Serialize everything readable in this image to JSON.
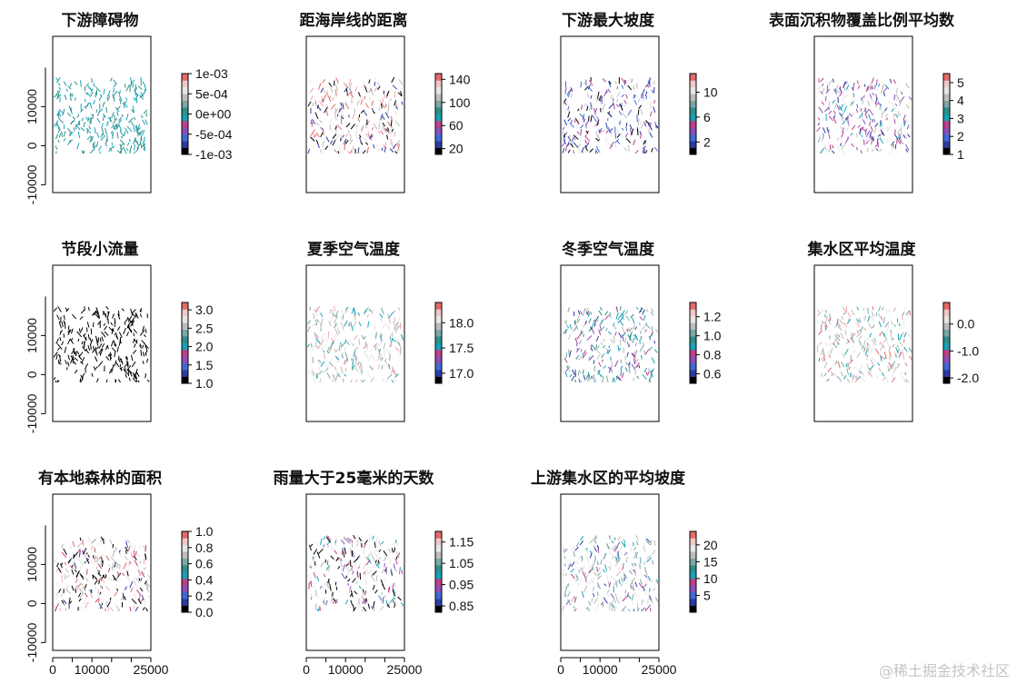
{
  "watermark": "@稀土掘金技术社区",
  "palette": [
    "#000000",
    "#2a3ca0",
    "#3f6bd8",
    "#8c4fb8",
    "#c03f8a",
    "#17a2b8",
    "#2f8f8a",
    "#7ba7a7",
    "#bdbdbd",
    "#e6e6e6",
    "#f0a8a8",
    "#e56a6a"
  ],
  "chart_data": [
    {
      "type": "heatmap",
      "title": "下游障碍物",
      "colorbar": {
        "range": [
          -0.001,
          0.001
        ],
        "ticks": [
          "1e-03",
          "5e-04",
          "0e+00",
          "-5e-04",
          "-1e-03"
        ]
      },
      "yticks": [
        "10000",
        "0",
        "-10000"
      ],
      "xticks": []
    },
    {
      "type": "heatmap",
      "title": "距海岸线的距离",
      "colorbar": {
        "range": [
          10,
          150
        ],
        "ticks": [
          "140",
          "100",
          "60",
          "20"
        ]
      },
      "yticks": [],
      "xticks": []
    },
    {
      "type": "heatmap",
      "title": "下游最大坡度",
      "colorbar": {
        "range": [
          0,
          13
        ],
        "ticks": [
          "10",
          "6",
          "2"
        ]
      },
      "yticks": [],
      "xticks": []
    },
    {
      "type": "heatmap",
      "title": "表面沉积物覆盖比例平均数",
      "colorbar": {
        "range": [
          1,
          5.5
        ],
        "ticks": [
          "5",
          "4",
          "3",
          "2",
          "1"
        ]
      },
      "yticks": [],
      "xticks": []
    },
    {
      "type": "heatmap",
      "title": "节段小流量",
      "colorbar": {
        "range": [
          1,
          3.2
        ],
        "ticks": [
          "3.0",
          "2.5",
          "2.0",
          "1.5",
          "1.0"
        ]
      },
      "yticks": [
        "10000",
        "0",
        "-10000"
      ],
      "xticks": []
    },
    {
      "type": "heatmap",
      "title": "夏季空气温度",
      "colorbar": {
        "range": [
          16.8,
          18.4
        ],
        "ticks": [
          "18.0",
          "17.5",
          "17.0"
        ]
      },
      "yticks": [],
      "xticks": []
    },
    {
      "type": "heatmap",
      "title": "冬季空气温度",
      "colorbar": {
        "range": [
          0.5,
          1.35
        ],
        "ticks": [
          "1.2",
          "1.0",
          "0.8",
          "0.6"
        ]
      },
      "yticks": [],
      "xticks": []
    },
    {
      "type": "heatmap",
      "title": "集水区平均温度",
      "colorbar": {
        "range": [
          -2.2,
          0.8
        ],
        "ticks": [
          "0.0",
          "-1.0",
          "-2.0"
        ]
      },
      "yticks": [],
      "xticks": []
    },
    {
      "type": "heatmap",
      "title": "有本地森林的面积",
      "colorbar": {
        "range": [
          0,
          1
        ],
        "ticks": [
          "1.0",
          "0.8",
          "0.6",
          "0.4",
          "0.2",
          "0.0"
        ]
      },
      "yticks": [
        "10000",
        "0",
        "-10000"
      ],
      "xticks": [
        "0",
        "10000",
        "25000"
      ]
    },
    {
      "type": "heatmap",
      "title": "雨量大于25毫米的天数",
      "colorbar": {
        "range": [
          0.82,
          1.2
        ],
        "ticks": [
          "1.15",
          "1.05",
          "0.95",
          "0.85"
        ]
      },
      "yticks": [],
      "xticks": [
        "0",
        "10000",
        "25000"
      ]
    },
    {
      "type": "heatmap",
      "title": "上游集水区的平均坡度",
      "colorbar": {
        "range": [
          0,
          24
        ],
        "ticks": [
          "20",
          "15",
          "10",
          "5"
        ]
      },
      "yticks": [],
      "xticks": [
        "0",
        "10000",
        "25000"
      ]
    }
  ]
}
